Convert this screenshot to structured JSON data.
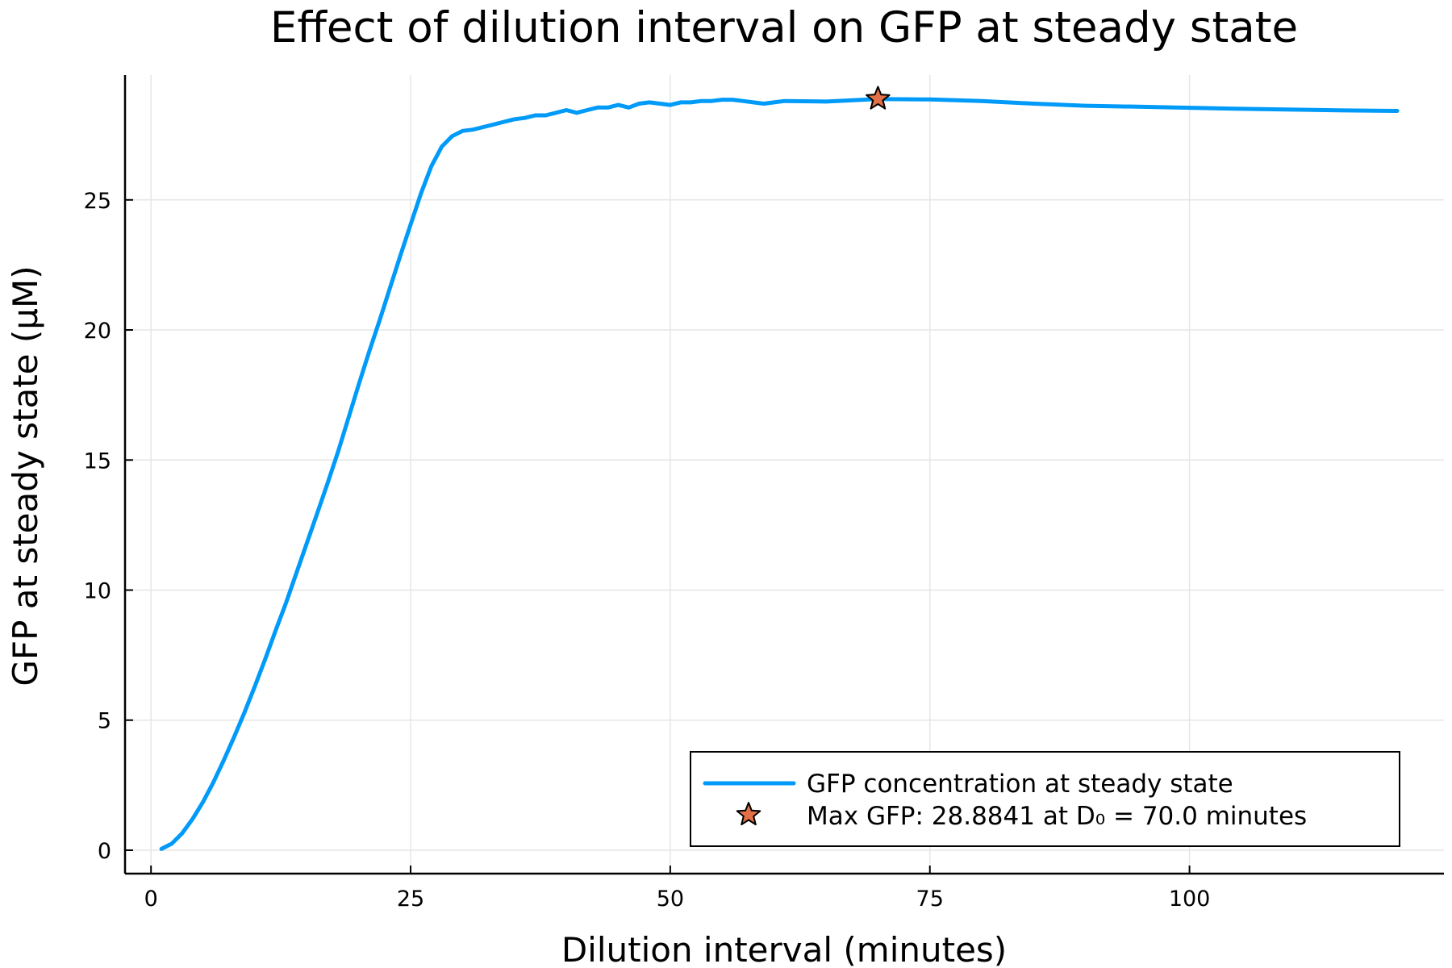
{
  "chart_data": {
    "type": "line",
    "title": "Effect of dilution interval on GFP at steady state",
    "xlabel": "Dilution interval (minutes)",
    "ylabel": "GFP at steady state (μM)",
    "xlim": [
      -2.5,
      124.5
    ],
    "ylim": [
      -0.9,
      29.8
    ],
    "xticks": [
      0,
      25,
      50,
      75,
      100
    ],
    "xtick_labels": [
      "0",
      "25",
      "50",
      "75",
      "100"
    ],
    "yticks": [
      0,
      5,
      10,
      15,
      20,
      25
    ],
    "ytick_labels": [
      "0",
      "5",
      "10",
      "15",
      "20",
      "25"
    ],
    "grid": true,
    "legend_position": "bottom-right",
    "colors": {
      "line": "#009af9",
      "marker": "#e26f46"
    },
    "series": [
      {
        "name": "GFP concentration at steady state",
        "type": "line",
        "x": [
          1,
          2,
          3,
          4,
          5,
          6,
          7,
          8,
          9,
          10,
          11,
          12,
          13,
          14,
          15,
          16,
          17,
          18,
          19,
          20,
          21,
          22,
          23,
          24,
          25,
          26,
          27,
          28,
          29,
          30,
          31,
          32,
          33,
          34,
          35,
          36,
          37,
          38,
          39,
          40,
          41,
          42,
          43,
          44,
          45,
          46,
          47,
          48,
          49,
          50,
          51,
          52,
          53,
          54,
          55,
          56,
          57,
          58,
          59,
          60,
          61,
          65,
          70,
          75,
          80,
          85,
          90,
          95,
          100,
          105,
          110,
          115,
          120
        ],
        "y": [
          0.05,
          0.25,
          0.65,
          1.2,
          1.85,
          2.6,
          3.45,
          4.35,
          5.3,
          6.3,
          7.35,
          8.45,
          9.5,
          10.65,
          11.8,
          12.95,
          14.1,
          15.3,
          16.6,
          17.9,
          19.15,
          20.35,
          21.6,
          22.85,
          24.05,
          25.25,
          26.3,
          27.05,
          27.45,
          27.65,
          27.7,
          27.8,
          27.9,
          28.0,
          28.1,
          28.15,
          28.25,
          28.25,
          28.35,
          28.45,
          28.35,
          28.45,
          28.55,
          28.55,
          28.65,
          28.55,
          28.7,
          28.75,
          28.7,
          28.65,
          28.75,
          28.75,
          28.8,
          28.8,
          28.85,
          28.85,
          28.8,
          28.75,
          28.7,
          28.75,
          28.8,
          28.78,
          28.88,
          28.86,
          28.8,
          28.7,
          28.62,
          28.58,
          28.54,
          28.5,
          28.47,
          28.44,
          28.42
        ]
      },
      {
        "name": "Max GFP: 28.8841 at D₀ = 70.0 minutes",
        "type": "scatter",
        "marker": "star",
        "x": [
          70.0
        ],
        "y": [
          28.8841
        ]
      }
    ]
  }
}
